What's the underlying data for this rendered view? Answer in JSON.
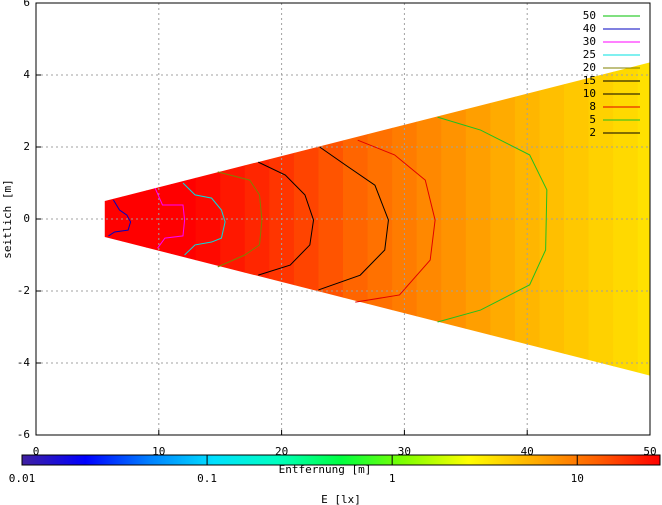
{
  "chart_data": {
    "type": "contour",
    "xlabel": "Entfernung [m]",
    "ylabel": "seitlich [m]",
    "xlim": [
      0,
      50
    ],
    "xticks": [
      0,
      10,
      20,
      30,
      40,
      50
    ],
    "ylim": [
      -6,
      6
    ],
    "yticks": [
      -6,
      -4,
      -2,
      0,
      2,
      4,
      6
    ],
    "grid": true,
    "legend": "top-right",
    "region": {
      "x": [
        5.6,
        50
      ],
      "half_width": [
        0.5,
        4.35
      ]
    },
    "field": {
      "x": [
        6,
        8,
        10,
        12,
        14,
        16,
        18,
        20,
        22,
        24,
        26,
        28,
        30,
        32,
        34,
        36,
        38,
        40,
        42,
        44,
        46,
        48,
        50
      ],
      "values": [
        50,
        36,
        32,
        29,
        26,
        23,
        20.5,
        18,
        16,
        14,
        12,
        10.7,
        9.6,
        8.5,
        7.6,
        6.8,
        6,
        5.4,
        4.9,
        4.5,
        4.1,
        3.8,
        3.5
      ]
    },
    "colorbar": {
      "label": "E [lx]",
      "log": true,
      "lim": [
        0.01,
        28
      ],
      "ticks": [
        0.01,
        0.1,
        1,
        10
      ],
      "palette": [
        "#4020a0",
        "#0000ff",
        "#0080ff",
        "#00e0ff",
        "#00ffc0",
        "#00ff40",
        "#80ff00",
        "#ffff00",
        "#ffb000",
        "#ff6000",
        "#ff0000"
      ]
    },
    "series": [
      {
        "name": "50",
        "color": "#00c000",
        "x": [],
        "y": []
      },
      {
        "name": "40",
        "color": "#0000c0",
        "x": [
          6.3,
          6.8,
          7.4,
          7.7,
          7.5,
          6.4,
          5.9
        ],
        "y": [
          0.53,
          0.25,
          0.11,
          -0.08,
          -0.31,
          -0.36,
          -0.47
        ]
      },
      {
        "name": "30",
        "color": "#ff00ff",
        "x": [
          9.7,
          10.3,
          11.97,
          12.1,
          11.97,
          10.5,
          9.9
        ],
        "y": [
          0.86,
          0.39,
          0.39,
          -0.03,
          -0.47,
          -0.53,
          -0.81
        ]
      },
      {
        "name": "25",
        "color": "#00e0e0",
        "x": [
          11.97,
          12.95,
          14.3,
          15.1,
          15.4,
          15.1,
          14.3,
          12.95,
          12.1
        ],
        "y": [
          1.0,
          0.67,
          0.58,
          0.25,
          -0.08,
          -0.53,
          -0.64,
          -0.72,
          -1.0
        ]
      },
      {
        "name": "20",
        "color": "#808000",
        "x": [
          14.8,
          17.4,
          18.2,
          18.4,
          18.2,
          17.0,
          14.8
        ],
        "y": [
          1.31,
          1.08,
          0.67,
          -0.03,
          -0.72,
          -1.0,
          -1.33
        ]
      },
      {
        "name": "15",
        "color": "#000000",
        "x": [
          18.1,
          20.3,
          21.9,
          22.6,
          22.3,
          20.7,
          18.1
        ],
        "y": [
          1.58,
          1.22,
          0.67,
          -0.03,
          -0.72,
          -1.28,
          -1.56
        ]
      },
      {
        "name": "10",
        "color": "#000000",
        "x": [
          23.1,
          25.2,
          27.6,
          28.7,
          28.4,
          26.4,
          23.0
        ],
        "y": [
          2.0,
          1.5,
          0.94,
          -0.03,
          -0.86,
          -1.56,
          -1.97
        ]
      },
      {
        "name": "8",
        "color": "#e00000",
        "x": [
          26.2,
          29.2,
          31.7,
          32.5,
          32.1,
          29.6,
          26.0
        ],
        "y": [
          2.19,
          1.78,
          1.08,
          -0.03,
          -1.14,
          -2.11,
          -2.31
        ]
      },
      {
        "name": "5",
        "color": "#20c020",
        "x": [
          32.7,
          36.2,
          40.2,
          41.6,
          41.5,
          40.2,
          36.2,
          32.7
        ],
        "y": [
          2.83,
          2.47,
          1.78,
          0.81,
          -0.86,
          -1.83,
          -2.53,
          -2.86
        ]
      },
      {
        "name": "2",
        "color": "#000000",
        "x": [],
        "y": []
      }
    ]
  }
}
